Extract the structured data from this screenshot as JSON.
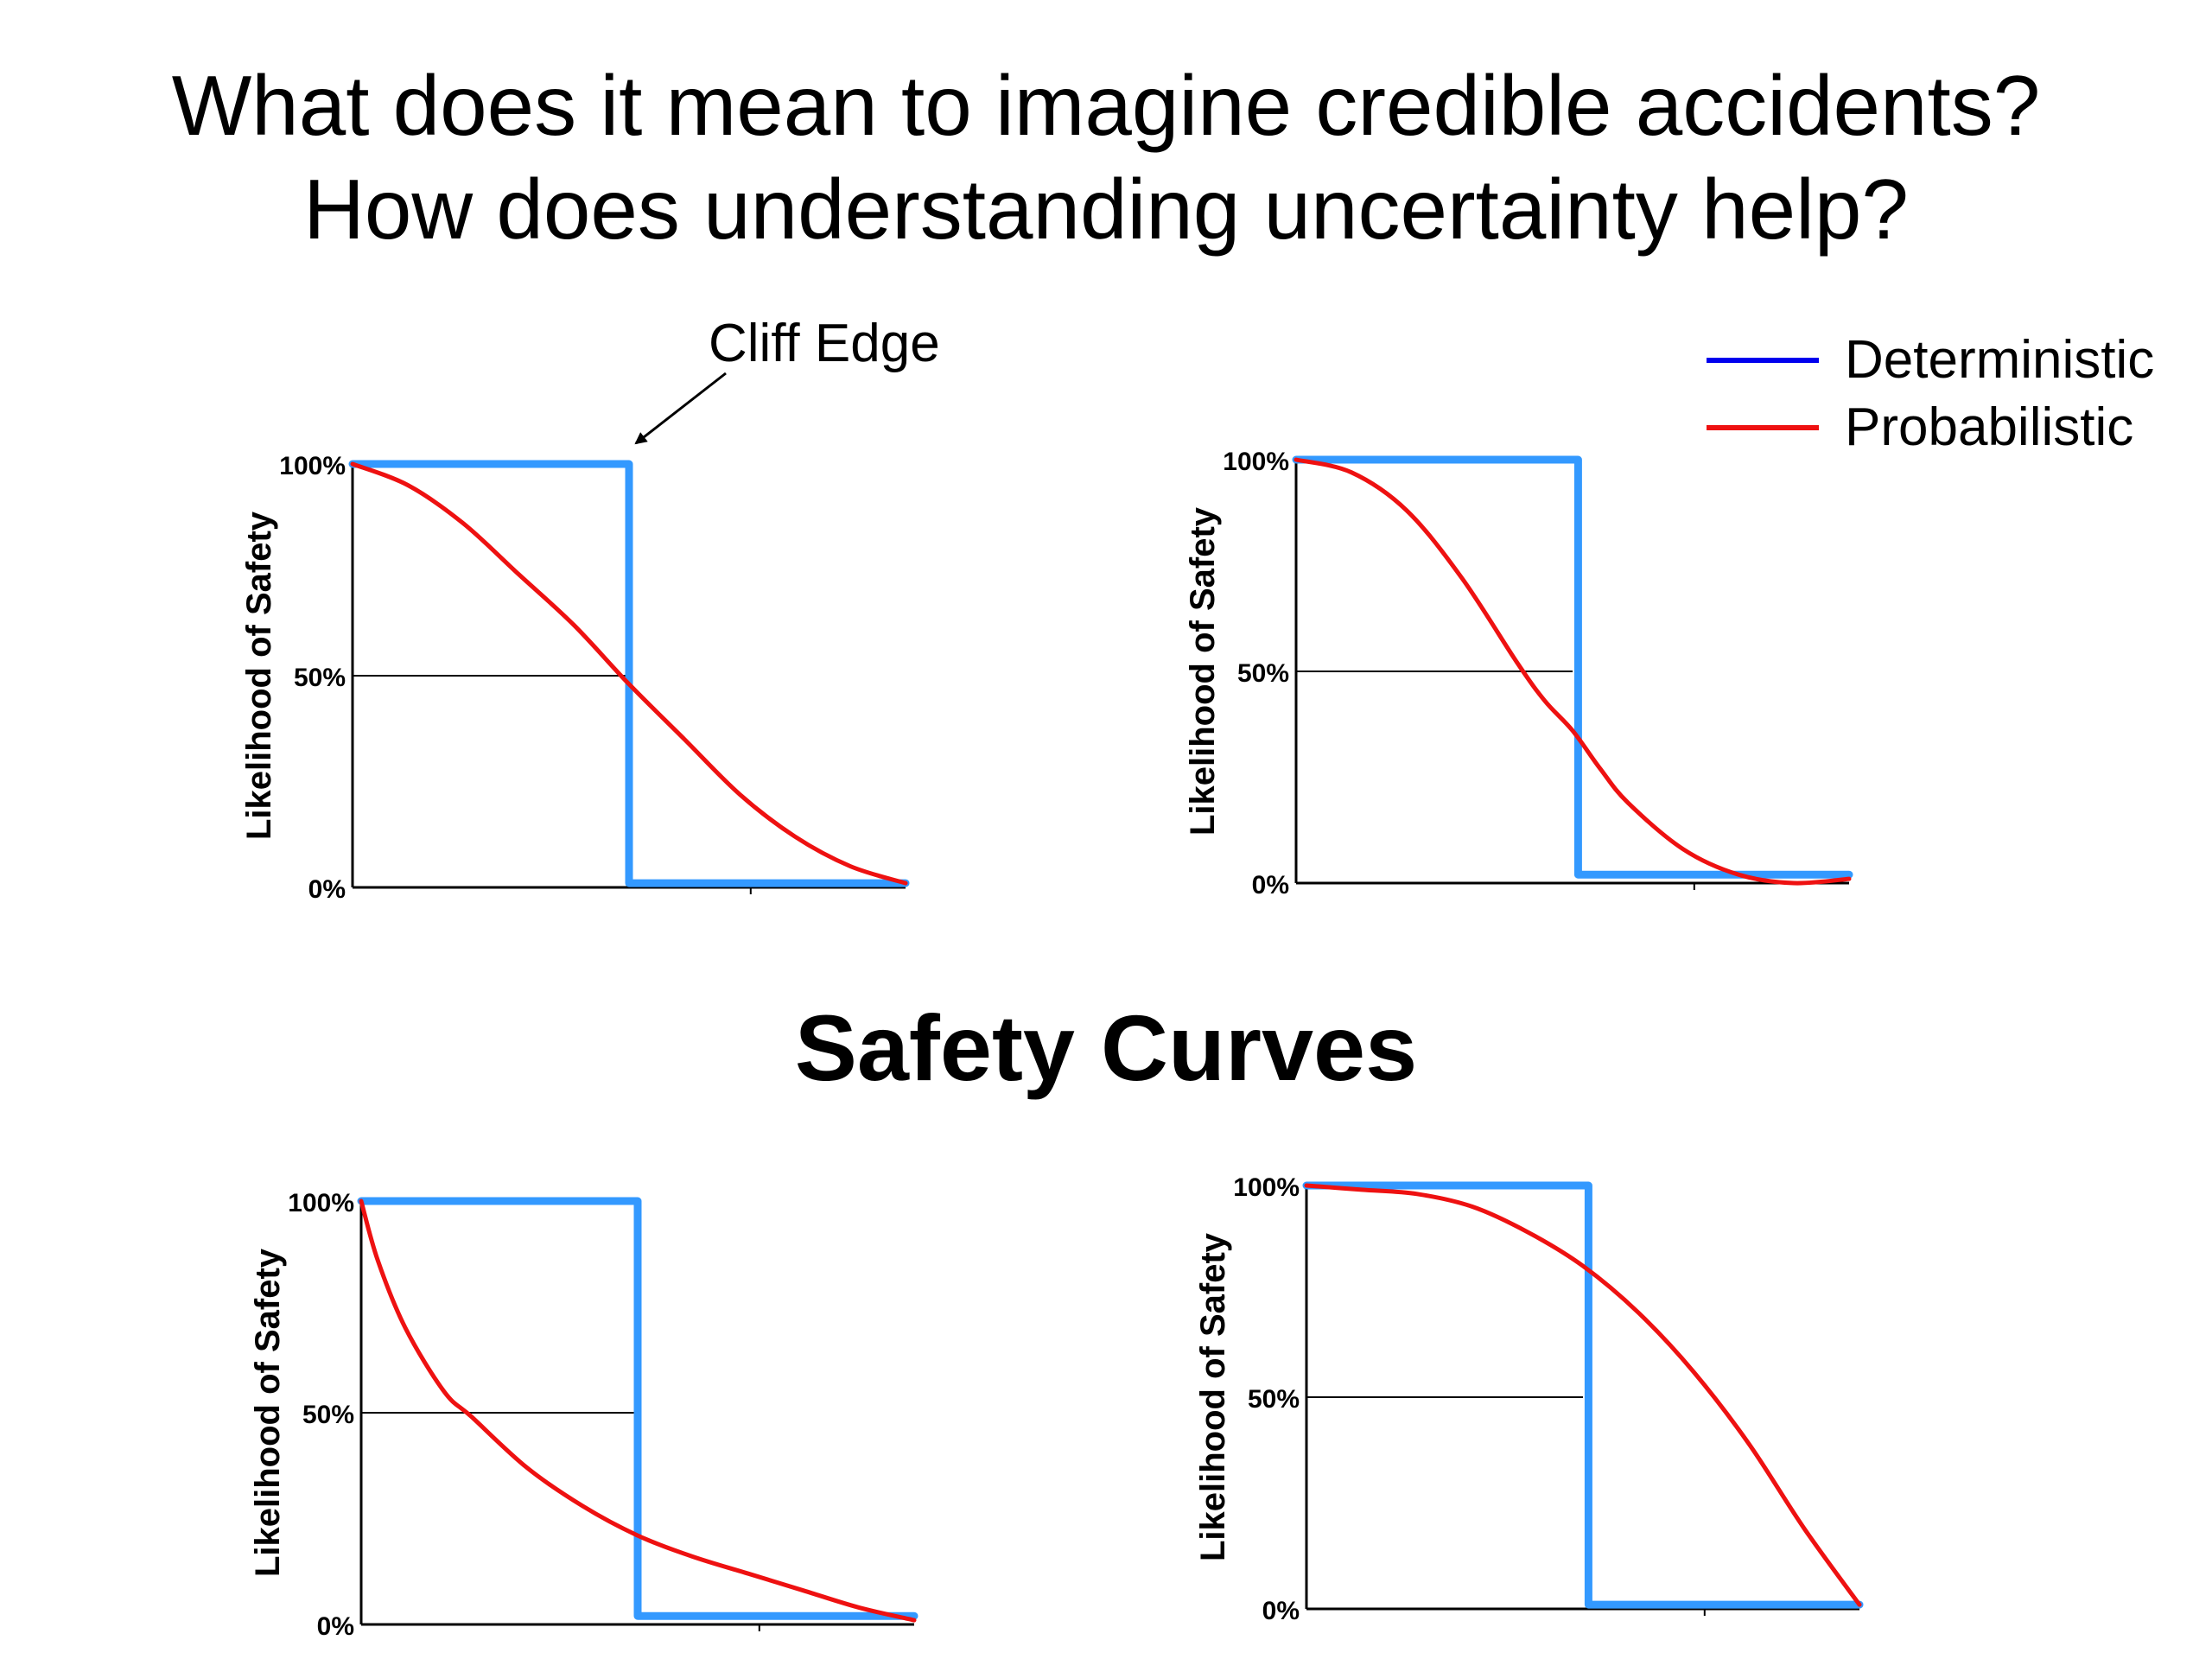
{
  "title_lines": [
    "What does it mean to imagine credible accidents?",
    "How does understanding uncertainty help?"
  ],
  "center_heading": "Safety Curves",
  "annotation": {
    "text": "Cliff Edge"
  },
  "colors": {
    "deterministic": "#3399ff",
    "probabilistic": "#ee1111",
    "legend_blue": "#0000ee",
    "axis": "#000000"
  },
  "legend": [
    {
      "label": "Deterministic",
      "color": "#0000ee"
    },
    {
      "label": "Probabilistic",
      "color": "#ee1111"
    }
  ],
  "chart_data": [
    {
      "type": "line",
      "ylabel": "Likelihood of Safety",
      "yticks": [
        "100%",
        "50%",
        "0%"
      ],
      "xlim": [
        0,
        1
      ],
      "ylim": [
        0,
        100
      ],
      "series": [
        {
          "name": "Deterministic",
          "x": [
            0,
            0.5,
            0.5,
            1
          ],
          "y": [
            100,
            100,
            1,
            1
          ]
        },
        {
          "name": "Probabilistic",
          "x": [
            0,
            0.1,
            0.2,
            0.3,
            0.4,
            0.5,
            0.6,
            0.7,
            0.8,
            0.9,
            1.0
          ],
          "y": [
            100,
            95,
            86,
            74,
            62,
            48,
            35,
            22,
            12,
            5,
            1
          ]
        }
      ]
    },
    {
      "type": "line",
      "ylabel": "Likelihood of Safety",
      "yticks": [
        "100%",
        "50%",
        "0%"
      ],
      "xlim": [
        0,
        1
      ],
      "ylim": [
        0,
        100
      ],
      "series": [
        {
          "name": "Deterministic",
          "x": [
            0,
            0.51,
            0.51,
            1
          ],
          "y": [
            100,
            100,
            2,
            2
          ]
        },
        {
          "name": "Probabilistic",
          "x": [
            0,
            0.1,
            0.2,
            0.3,
            0.4,
            0.45,
            0.5,
            0.55,
            0.6,
            0.7,
            0.8,
            0.9,
            1.0
          ],
          "y": [
            100,
            97,
            88,
            72,
            52,
            43,
            36,
            27,
            19,
            8,
            2,
            0,
            1
          ]
        }
      ]
    },
    {
      "type": "line",
      "ylabel": "Likelihood of Safety",
      "yticks": [
        "100%",
        "50%",
        "0%"
      ],
      "xlim": [
        0,
        1
      ],
      "ylim": [
        0,
        100
      ],
      "series": [
        {
          "name": "Deterministic",
          "x": [
            0,
            0.5,
            0.5,
            1
          ],
          "y": [
            100,
            100,
            2,
            2
          ]
        },
        {
          "name": "Probabilistic",
          "x": [
            0,
            0.03,
            0.08,
            0.15,
            0.2,
            0.3,
            0.4,
            0.5,
            0.6,
            0.7,
            0.8,
            0.9,
            1.0
          ],
          "y": [
            100,
            86,
            70,
            55,
            49,
            37,
            28,
            21,
            16,
            12,
            8,
            4,
            1
          ]
        }
      ]
    },
    {
      "type": "line",
      "ylabel": "Likelihood of Safety",
      "yticks": [
        "100%",
        "50%",
        "0%"
      ],
      "xlim": [
        0,
        1
      ],
      "ylim": [
        0,
        100
      ],
      "series": [
        {
          "name": "Deterministic",
          "x": [
            0,
            0.51,
            0.51,
            1
          ],
          "y": [
            100,
            100,
            1,
            1
          ]
        },
        {
          "name": "Probabilistic",
          "x": [
            0,
            0.1,
            0.2,
            0.3,
            0.4,
            0.5,
            0.6,
            0.7,
            0.8,
            0.9,
            1.0
          ],
          "y": [
            100,
            99,
            98,
            95,
            89,
            81,
            70,
            56,
            39,
            19,
            1
          ]
        }
      ]
    }
  ]
}
